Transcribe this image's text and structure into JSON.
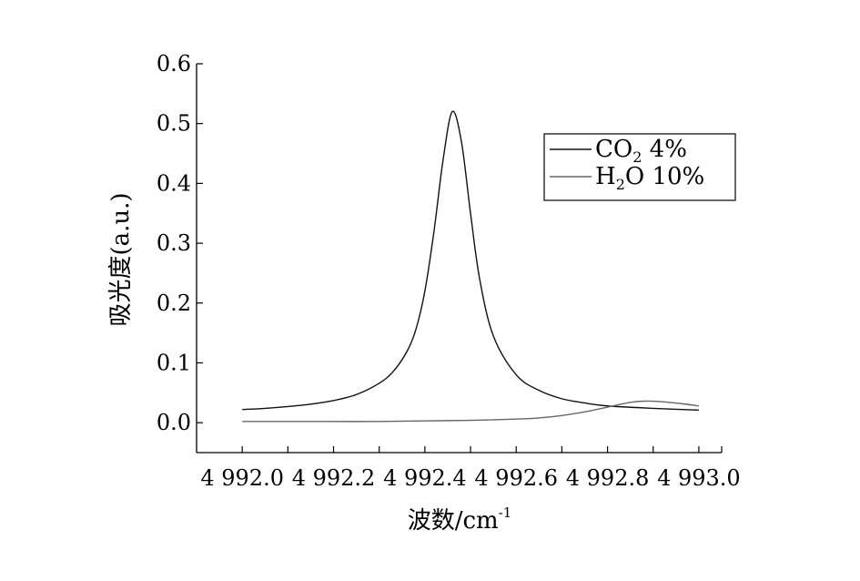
{
  "chart_data": {
    "type": "line",
    "xlabel": "波数/cm",
    "xlabel_sup": "-1",
    "ylabel": "吸光度(a.u.)",
    "xlim": [
      4991.9,
      4993.05
    ],
    "ylim": [
      -0.05,
      0.6
    ],
    "x_ticks": [
      4992.0,
      4992.1,
      4992.2,
      4992.3,
      4992.4,
      4992.5,
      4992.6,
      4992.7,
      4992.8,
      4992.9,
      4993.0
    ],
    "x_tick_labels": [
      "4 992.0",
      "4 992.2",
      "4 992.4",
      "4 992.6",
      "4 992.8",
      "4 993.0"
    ],
    "x_tick_label_values": [
      4992.0,
      4992.2,
      4992.4,
      4992.6,
      4992.8,
      4993.0
    ],
    "y_ticks": [
      0.0,
      0.1,
      0.2,
      0.3,
      0.4,
      0.5,
      0.6
    ],
    "y_tick_labels": [
      "0.0",
      "0.1",
      "0.2",
      "0.3",
      "0.4",
      "0.5",
      "0.6"
    ],
    "grid": false,
    "legend_position": "top-right",
    "series": [
      {
        "legend_main": "CO",
        "legend_sub": "2",
        "legend_rest": "  4%",
        "color": "#111111",
        "x": [
          4992.0,
          4992.05,
          4992.1,
          4992.15,
          4992.2,
          4992.25,
          4992.3,
          4992.33,
          4992.36,
          4992.38,
          4992.4,
          4992.42,
          4992.44,
          4992.46,
          4992.48,
          4992.5,
          4992.52,
          4992.55,
          4992.6,
          4992.65,
          4992.7,
          4992.75,
          4992.8,
          4992.9,
          4993.0
        ],
        "y": [
          0.022,
          0.024,
          0.027,
          0.031,
          0.037,
          0.047,
          0.066,
          0.085,
          0.118,
          0.155,
          0.22,
          0.32,
          0.44,
          0.52,
          0.47,
          0.35,
          0.24,
          0.145,
          0.08,
          0.054,
          0.04,
          0.033,
          0.028,
          0.024,
          0.021
        ]
      },
      {
        "legend_main": "H",
        "legend_sub": "2",
        "legend_rest": "O  10%",
        "color": "#666666",
        "x": [
          4992.0,
          4992.1,
          4992.2,
          4992.3,
          4992.4,
          4992.5,
          4992.6,
          4992.65,
          4992.7,
          4992.75,
          4992.8,
          4992.85,
          4992.88,
          4992.92,
          4992.96,
          4993.0
        ],
        "y": [
          0.002,
          0.002,
          0.002,
          0.002,
          0.003,
          0.004,
          0.006,
          0.008,
          0.012,
          0.018,
          0.026,
          0.034,
          0.036,
          0.035,
          0.032,
          0.028
        ]
      }
    ]
  }
}
